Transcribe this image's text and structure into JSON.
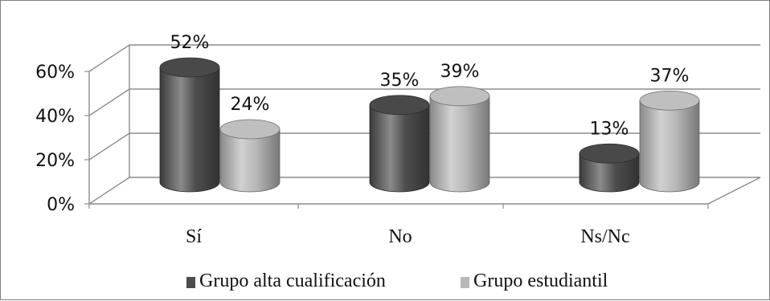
{
  "chart_data": {
    "type": "bar",
    "style": "3d-cylinder",
    "categories": [
      "Sí",
      "No",
      "Ns/Nc"
    ],
    "series": [
      {
        "name": "Grupo alta cualificación",
        "values": [
          52,
          35,
          13
        ],
        "color": "#4d4d4d"
      },
      {
        "name": "Grupo estudiantil",
        "values": [
          24,
          39,
          37
        ],
        "color": "#b8b8b8"
      }
    ],
    "y_ticks": [
      0,
      20,
      40,
      60
    ],
    "ylim": [
      0,
      60
    ],
    "value_suffix": "%",
    "grid": true,
    "legend_position": "bottom",
    "colors": {
      "border": "#7f7f7f",
      "grid": "#8c8c8c"
    }
  }
}
